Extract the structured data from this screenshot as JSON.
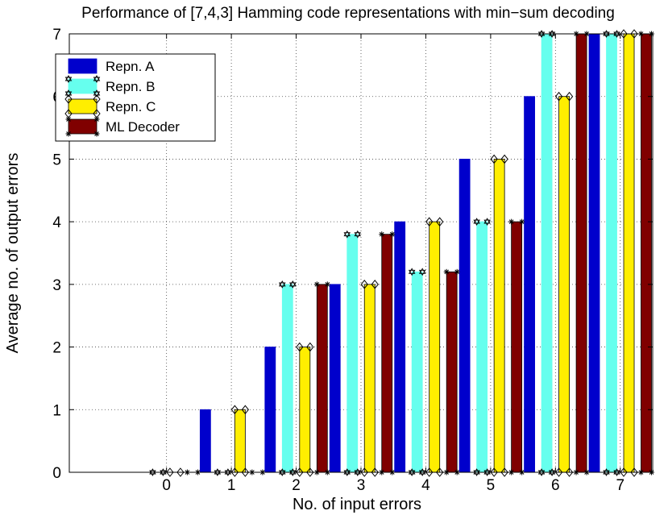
{
  "chart_data": {
    "type": "bar",
    "title": "Performance of [7,4,3] Hamming code representations with min−sum decoding",
    "xlabel": "No. of input errors",
    "ylabel": "Average no. of output errors",
    "categories": [
      "0",
      "1",
      "2",
      "3",
      "4",
      "5",
      "6",
      "7"
    ],
    "xlim": [
      -1.5,
      7.5
    ],
    "ylim": [
      0,
      7
    ],
    "yticks": [
      "0",
      "1",
      "2",
      "3",
      "4",
      "5",
      "6",
      "7"
    ],
    "grid": true,
    "legend_position": "top-left",
    "series": [
      {
        "name": "Repn. A",
        "color": "#0000cc",
        "marker": "none",
        "values": [
          0,
          1,
          2,
          3,
          4,
          5,
          6,
          7
        ]
      },
      {
        "name": "Repn. B",
        "color": "#66ffee",
        "marker": "hexagram",
        "values": [
          0,
          0,
          3,
          3.8,
          3.2,
          4,
          7,
          7
        ]
      },
      {
        "name": "Repn. C",
        "color": "#ffee00",
        "marker": "diamond",
        "values": [
          0,
          1,
          2,
          3,
          4,
          5,
          6,
          7
        ]
      },
      {
        "name": "ML Decoder",
        "color": "#800000",
        "marker": "asterisk",
        "values": [
          0,
          0,
          3,
          3.8,
          3.2,
          4,
          7,
          7
        ]
      }
    ]
  }
}
